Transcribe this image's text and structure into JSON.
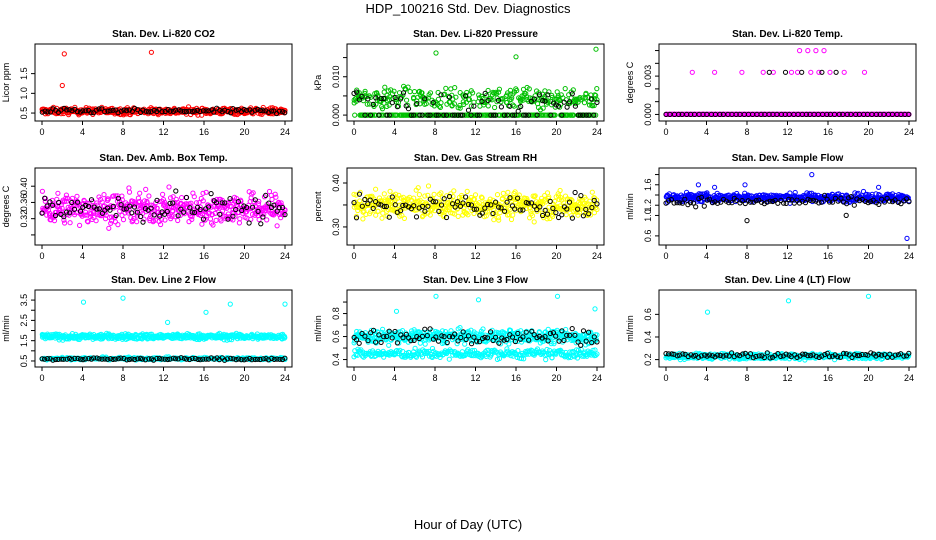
{
  "title": "HDP_100216  Std. Dev. Diagnostics",
  "xlabel": "Hour of Day (UTC)",
  "chart_data": [
    {
      "type": "scatter",
      "title": "Stan. Dev. Li-820 CO2",
      "ylabel": "Licor ppm",
      "xlim": [
        0,
        24
      ],
      "ylim": [
        0.4,
        2.15
      ],
      "xticks": [
        0,
        4,
        8,
        12,
        16,
        20,
        24
      ],
      "yticks": [
        0.5,
        1.0,
        1.5
      ],
      "yticklabels": [
        "0.5",
        "1.0",
        "1.5"
      ],
      "grid": false,
      "series": [
        {
          "color": "#ff0000",
          "n": 480,
          "base": 0.55,
          "spread": 0.07,
          "outliers": [
            [
              2.2,
              2.0
            ],
            [
              2.0,
              1.2
            ],
            [
              10.8,
              2.04
            ]
          ]
        },
        {
          "color": "#000000",
          "n": 90,
          "base": 0.55,
          "spread": 0.05,
          "outliers": []
        }
      ]
    },
    {
      "type": "scatter",
      "title": "Stan. Dev. Li-820 Pressure",
      "ylabel": "kPa",
      "xlim": [
        0,
        24
      ],
      "ylim": [
        -0.0005,
        0.0175
      ],
      "xticks": [
        0,
        4,
        8,
        12,
        16,
        20,
        24
      ],
      "yticks": [
        0.0,
        0.005,
        0.01,
        0.015
      ],
      "yticklabels": [
        "0.000",
        "",
        "0.010",
        ""
      ],
      "grid": false,
      "series": [
        {
          "color": "#00c000",
          "n": 480,
          "base": 0.0045,
          "spread": 0.0022,
          "floor": 0.0,
          "outliers": [
            [
              8.1,
              0.0162
            ],
            [
              16.0,
              0.0152
            ],
            [
              23.9,
              0.0172
            ],
            [
              4.9,
              0.0075
            ]
          ]
        },
        {
          "color": "#000000",
          "n": 90,
          "base": 0.0035,
          "spread": 0.0025,
          "floor": 0.0,
          "outliers": []
        }
      ]
    },
    {
      "type": "scatter",
      "title": "Stan. Dev. Li-820 Temp.",
      "ylabel": "degrees C",
      "xlim": [
        0,
        24
      ],
      "ylim": [
        -0.0002,
        0.0052
      ],
      "xticks": [
        0,
        4,
        8,
        12,
        16,
        20,
        24
      ],
      "yticks": [
        0.0,
        0.001,
        0.002,
        0.003,
        0.004,
        0.005
      ],
      "yticklabels": [
        "0.000",
        "",
        "",
        "0.003",
        "",
        ""
      ],
      "grid": false,
      "series": [
        {
          "color": "#ff00ff",
          "n": 480,
          "base": 0.0,
          "spread": 0.0,
          "floor": 0.0,
          "outliers": [
            [
              2.6,
              0.0033
            ],
            [
              4.8,
              0.0033
            ],
            [
              7.5,
              0.0033
            ],
            [
              9.6,
              0.0033
            ],
            [
              10.6,
              0.0033
            ],
            [
              12.4,
              0.0033
            ],
            [
              13.2,
              0.005
            ],
            [
              14.0,
              0.005
            ],
            [
              14.8,
              0.005
            ],
            [
              15.6,
              0.005
            ],
            [
              13.0,
              0.0033
            ],
            [
              14.3,
              0.0033
            ],
            [
              15.1,
              0.0033
            ],
            [
              16.2,
              0.0033
            ],
            [
              17.6,
              0.0033
            ],
            [
              19.6,
              0.0033
            ]
          ]
        },
        {
          "color": "#000000",
          "n": 60,
          "base": 0.0,
          "spread": 0.0,
          "floor": 0.0,
          "outliers": [
            [
              10.2,
              0.0033
            ],
            [
              11.8,
              0.0033
            ],
            [
              13.4,
              0.0033
            ],
            [
              15.4,
              0.0033
            ],
            [
              16.8,
              0.0033
            ]
          ]
        }
      ]
    },
    {
      "type": "scatter",
      "title": "Stan. Dev. Amb. Box Temp.",
      "ylabel": "degrees C",
      "xlim": [
        0,
        24
      ],
      "ylim": [
        0.265,
        0.435
      ],
      "xticks": [
        0,
        4,
        8,
        12,
        16,
        20,
        24
      ],
      "yticks": [
        0.28,
        0.32,
        0.36,
        0.4
      ],
      "yticklabels": [
        "",
        "0.32",
        "0.36",
        "0.40"
      ],
      "grid": false,
      "series": [
        {
          "color": "#ff00ff",
          "n": 480,
          "base": 0.345,
          "spread": 0.032,
          "outliers": []
        },
        {
          "color": "#000000",
          "n": 90,
          "base": 0.345,
          "spread": 0.03,
          "outliers": []
        }
      ]
    },
    {
      "type": "scatter",
      "title": "Stan. Dev. Gas Stream RH",
      "ylabel": "percent",
      "xlim": [
        0,
        24
      ],
      "ylim": [
        0.268,
        0.425
      ],
      "xticks": [
        0,
        4,
        8,
        12,
        16,
        20,
        24
      ],
      "yticks": [
        0.3,
        0.35,
        0.4
      ],
      "yticklabels": [
        "0.30",
        "",
        "0.40"
      ],
      "grid": false,
      "series": [
        {
          "color": "#ffff00",
          "n": 480,
          "base": 0.35,
          "spread": 0.025,
          "outliers": []
        },
        {
          "color": "#000000",
          "n": 90,
          "base": 0.345,
          "spread": 0.024,
          "outliers": []
        }
      ]
    },
    {
      "type": "scatter",
      "title": "Stan. Dev. Sample Flow",
      "ylabel": "ml/min",
      "xlim": [
        0,
        24
      ],
      "ylim": [
        0.5,
        1.85
      ],
      "xticks": [
        0,
        4,
        8,
        12,
        16,
        20,
        24
      ],
      "yticks": [
        0.6,
        1.0,
        1.2,
        1.4,
        1.6,
        1.8
      ],
      "yticklabels": [
        "0.6",
        "1.0",
        "1.2",
        "",
        "1.6",
        ""
      ],
      "grid": false,
      "series": [
        {
          "color": "#0000ff",
          "n": 480,
          "base": 1.35,
          "spread": 0.07,
          "outliers": [
            [
              3.2,
              1.6
            ],
            [
              7.8,
              1.6
            ],
            [
              14.4,
              1.8
            ],
            [
              21.0,
              1.55
            ],
            [
              23.8,
              0.55
            ],
            [
              4.8,
              1.55
            ]
          ]
        },
        {
          "color": "#000000",
          "n": 90,
          "base": 1.27,
          "spread": 0.07,
          "outliers": [
            [
              8.0,
              0.9
            ],
            [
              17.8,
              1.0
            ]
          ]
        }
      ]
    },
    {
      "type": "scatter",
      "title": "Stan. Dev. Line 2 Flow",
      "ylabel": "ml/min",
      "xlim": [
        0,
        24
      ],
      "ylim": [
        0.4,
        3.8
      ],
      "xticks": [
        0,
        4,
        8,
        12,
        16,
        20,
        24
      ],
      "yticks": [
        0.5,
        1.0,
        1.5,
        2.0,
        2.5,
        3.0,
        3.5
      ],
      "yticklabels": [
        "0.5",
        "",
        "1.5",
        "",
        "2.5",
        "",
        "3.5"
      ],
      "grid": false,
      "series": [
        {
          "color": "#00ffff",
          "n": 480,
          "base": 1.7,
          "spread": 0.12,
          "outliers": [
            [
              4.1,
              3.4
            ],
            [
              8.0,
              3.6
            ],
            [
              12.4,
              2.4
            ],
            [
              16.2,
              2.9
            ],
            [
              18.6,
              3.3
            ],
            [
              24.0,
              3.3
            ],
            [
              6.0,
              0.7
            ]
          ]
        },
        {
          "color": "#00ffff",
          "n": 300,
          "base": 0.62,
          "spread": 0.05,
          "outliers": []
        },
        {
          "color": "#000000",
          "n": 90,
          "base": 0.6,
          "spread": 0.05,
          "outliers": []
        }
      ]
    },
    {
      "type": "scatter",
      "title": "Stan. Dev. Line 3 Flow",
      "ylabel": "ml/min",
      "xlim": [
        0,
        24
      ],
      "ylim": [
        0.37,
        0.97
      ],
      "xticks": [
        0,
        4,
        8,
        12,
        16,
        20,
        24
      ],
      "yticks": [
        0.4,
        0.5,
        0.6,
        0.7,
        0.8,
        0.9
      ],
      "yticklabels": [
        "0.4",
        "",
        "0.6",
        "",
        "0.8",
        ""
      ],
      "grid": false,
      "series": [
        {
          "color": "#00ffff",
          "n": 480,
          "base": 0.6,
          "spread": 0.05,
          "outliers": [
            [
              4.2,
              0.82
            ],
            [
              8.1,
              0.95
            ],
            [
              12.3,
              0.92
            ],
            [
              20.1,
              0.95
            ],
            [
              23.8,
              0.84
            ]
          ]
        },
        {
          "color": "#00ffff",
          "n": 300,
          "base": 0.45,
          "spread": 0.035,
          "outliers": []
        },
        {
          "color": "#000000",
          "n": 90,
          "base": 0.6,
          "spread": 0.06,
          "outliers": []
        }
      ]
    },
    {
      "type": "scatter",
      "title": "Stan. Dev. Line 4 (LT) Flow",
      "ylabel": "ml/min",
      "xlim": [
        0,
        24
      ],
      "ylim": [
        0.17,
        0.78
      ],
      "xticks": [
        0,
        4,
        8,
        12,
        16,
        20,
        24
      ],
      "yticks": [
        0.2,
        0.4,
        0.6
      ],
      "yticklabels": [
        "0.2",
        "0.4",
        "0.6"
      ],
      "grid": false,
      "series": [
        {
          "color": "#00ffff",
          "n": 480,
          "base": 0.23,
          "spread": 0.02,
          "outliers": [
            [
              4.1,
              0.62
            ],
            [
              12.1,
              0.72
            ],
            [
              20.0,
              0.76
            ]
          ]
        },
        {
          "color": "#000000",
          "n": 90,
          "base": 0.24,
          "spread": 0.02,
          "outliers": []
        }
      ]
    }
  ]
}
